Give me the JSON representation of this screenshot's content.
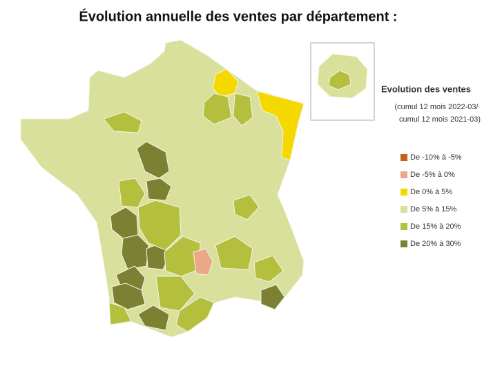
{
  "title": "Évolution annuelle des ventes par département :",
  "legend": {
    "title": "Evolution des ventes",
    "subtitle": [
      "(cumul 12 mois 2022-03/",
      "cumul 12 mois 2021-03)"
    ],
    "items": [
      {
        "label": "De -10% à -5%",
        "color": "#c4601c"
      },
      {
        "label": "De -5% à 0%",
        "color": "#eaa888"
      },
      {
        "label": "De 0% à 5%",
        "color": "#f4d800"
      },
      {
        "label": "De 5% à 15%",
        "color": "#d8e09c"
      },
      {
        "label": "De 15% à 20%",
        "color": "#b4bf3e"
      },
      {
        "label": "De 20% à 30%",
        "color": "#7b8032"
      }
    ]
  }
}
